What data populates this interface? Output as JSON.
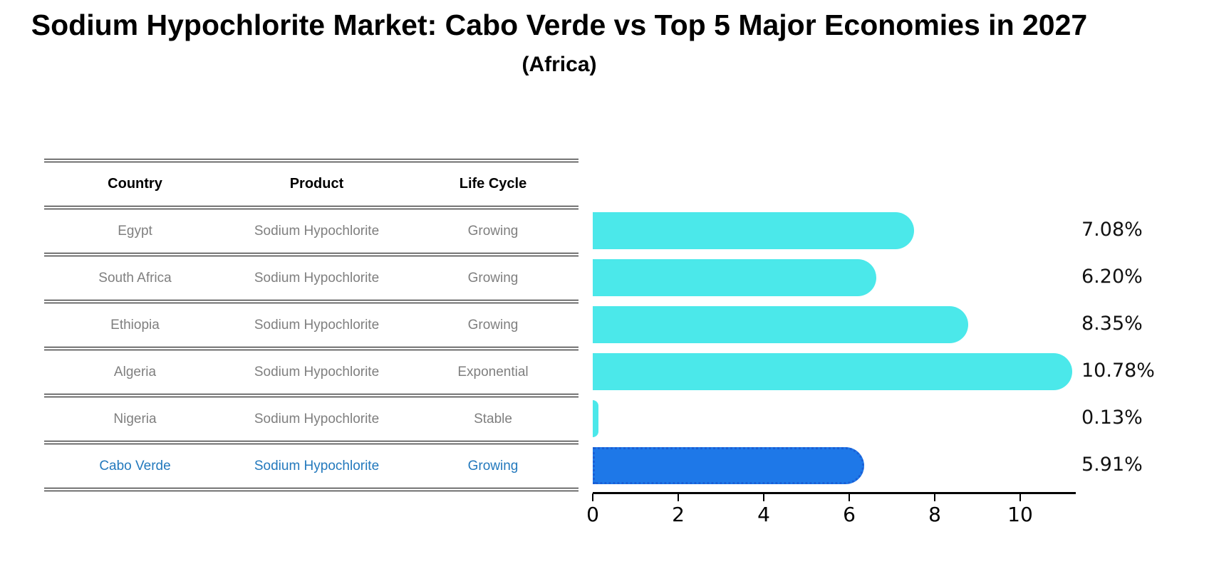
{
  "title": "Sodium Hypochlorite Market: Cabo Verde vs Top 5 Major Economies in 2027",
  "subtitle": "(Africa)",
  "table": {
    "headers": {
      "country": "Country",
      "product": "Product",
      "life_cycle": "Life Cycle"
    },
    "rows": [
      {
        "country": "Egypt",
        "product": "Sodium Hypochlorite",
        "life_cycle": "Growing",
        "value_label": "7.08%",
        "highlight": false
      },
      {
        "country": "South Africa",
        "product": "Sodium Hypochlorite",
        "life_cycle": "Growing",
        "value_label": "6.20%",
        "highlight": false
      },
      {
        "country": "Ethiopia",
        "product": "Sodium Hypochlorite",
        "life_cycle": "Growing",
        "value_label": "8.35%",
        "highlight": false
      },
      {
        "country": "Algeria",
        "product": "Sodium Hypochlorite",
        "life_cycle": "Exponential",
        "value_label": "10.78%",
        "highlight": false
      },
      {
        "country": "Nigeria",
        "product": "Sodium Hypochlorite",
        "life_cycle": "Stable",
        "value_label": "0.13%",
        "highlight": false
      },
      {
        "country": "Cabo Verde",
        "product": "Sodium Hypochlorite",
        "life_cycle": "Growing",
        "value_label": "5.91%",
        "highlight": true
      }
    ]
  },
  "chart_data": {
    "type": "bar",
    "orientation": "horizontal",
    "title": "Sodium Hypochlorite Market: Cabo Verde vs Top 5 Major Economies in 2027",
    "subtitle": "(Africa)",
    "categories": [
      "Egypt",
      "South Africa",
      "Ethiopia",
      "Algeria",
      "Nigeria",
      "Cabo Verde"
    ],
    "values": [
      7.08,
      6.2,
      8.35,
      10.78,
      0.13,
      5.91
    ],
    "value_labels": [
      "7.08%",
      "6.20%",
      "8.35%",
      "10.78%",
      "0.13%",
      "5.91%"
    ],
    "unit": "%",
    "xticks": [
      0,
      2,
      4,
      6,
      8,
      10
    ],
    "xlim": [
      0,
      11.3
    ],
    "grid": false,
    "legend": false,
    "bar_color": "#4be8ea",
    "highlight_index": 5,
    "highlight_color": "#1e78e8",
    "highlight_border_color": "#1a5fd6",
    "highlight_text_color": "#2379bd",
    "row_text_color": "#7f7f7f",
    "axis_color": "#000000"
  }
}
